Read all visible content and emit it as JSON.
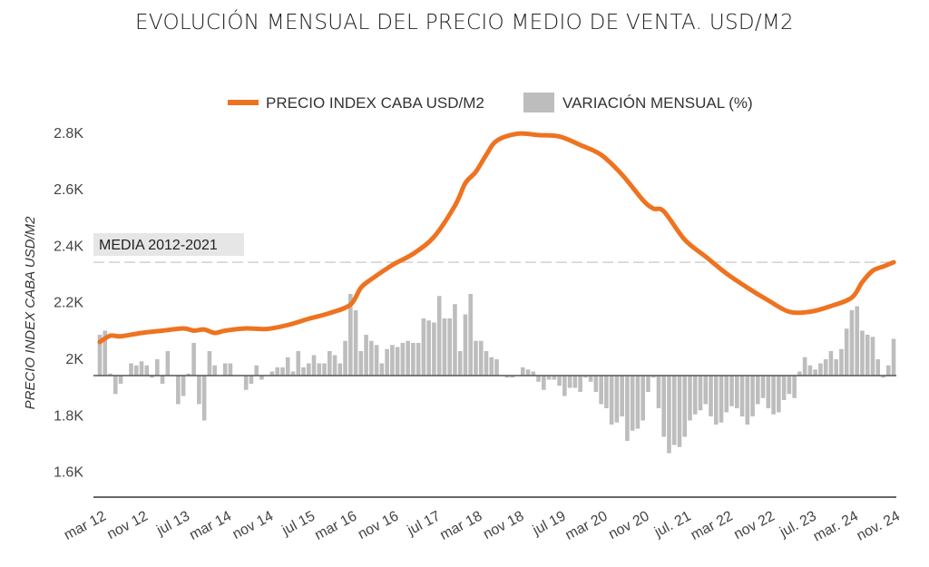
{
  "chart_data": {
    "type": "line+bar",
    "title": "EVOLUCIÓN MENSUAL DEL PRECIO MEDIO DE VENTA. USD/M2",
    "ylabel": "PRECIO INDEX CABA USD/M2",
    "xlabel": "",
    "ylim": [
      1520,
      2830
    ],
    "y_ticks": [
      "1.6K",
      "1.8K",
      "2K",
      "2.2K",
      "2.4K",
      "2.6K",
      "2.8K"
    ],
    "y_tick_values": [
      1600,
      1800,
      2000,
      2200,
      2400,
      2600,
      2800
    ],
    "x_ticks": [
      "mar 12",
      "nov 12",
      "jul 13",
      "mar 14",
      "nov 14",
      "jul 15",
      "mar 16",
      "nov 16",
      "jul 17",
      "mar 18",
      "nov 18",
      "jul 19",
      "mar 20",
      "nov 20",
      "jul. 21",
      "mar 22",
      "nov 22",
      "jul. 23",
      "mar. 24",
      "nov. 24"
    ],
    "x_tick_month_index": [
      0,
      8,
      16,
      24,
      32,
      40,
      48,
      56,
      64,
      72,
      80,
      88,
      96,
      104,
      112,
      120,
      128,
      136,
      144,
      152
    ],
    "legend": [
      "PRECIO INDEX CABA USD/M2",
      "VARIACIÓN MENSUAL (%)"
    ],
    "legend_position": "top-center",
    "reference_line": {
      "label": "MEDIA 2012-2021",
      "value": 2340
    },
    "series": [
      {
        "name": "PRECIO INDEX CABA USD/M2",
        "type": "line",
        "color": "#EE7320",
        "month_index": [
          0,
          2,
          4,
          8,
          12,
          16,
          18,
          20,
          22,
          24,
          28,
          32,
          36,
          40,
          44,
          48,
          50,
          52,
          56,
          60,
          64,
          68,
          70,
          72,
          74,
          76,
          80,
          84,
          88,
          92,
          96,
          100,
          104,
          106,
          108,
          112,
          116,
          120,
          124,
          128,
          132,
          136,
          140,
          144,
          146,
          148,
          150,
          152
        ],
        "values": [
          2058,
          2080,
          2078,
          2090,
          2098,
          2106,
          2098,
          2102,
          2090,
          2098,
          2106,
          2104,
          2118,
          2140,
          2160,
          2190,
          2250,
          2280,
          2330,
          2370,
          2430,
          2540,
          2620,
          2660,
          2720,
          2770,
          2795,
          2790,
          2785,
          2755,
          2720,
          2650,
          2560,
          2530,
          2520,
          2420,
          2360,
          2300,
          2250,
          2205,
          2165,
          2165,
          2185,
          2215,
          2270,
          2310,
          2325,
          2340
        ]
      },
      {
        "name": "VARIACIÓN MENSUAL (%)",
        "type": "bar",
        "color": "#BDBDBD",
        "values": [
          1.0,
          1.1,
          0.05,
          -0.45,
          -0.2,
          0,
          0.3,
          0.25,
          0.35,
          0.25,
          -0.05,
          0.4,
          -0.2,
          0.6,
          0,
          -0.7,
          -0.5,
          0.05,
          0.8,
          -0.7,
          -1.1,
          0.6,
          0.25,
          0,
          0.3,
          0.3,
          0,
          0,
          -0.35,
          -0.2,
          0.25,
          -0.1,
          0,
          0.1,
          0.2,
          0.2,
          0.45,
          0.1,
          0.6,
          0.2,
          0.3,
          0.5,
          0.3,
          0.3,
          0.6,
          0.5,
          0.3,
          0.85,
          2.0,
          1.6,
          0.6,
          1.0,
          0.85,
          0.75,
          0.3,
          0.65,
          0.75,
          0.7,
          0.8,
          0.85,
          0.8,
          0.8,
          1.4,
          1.35,
          1.3,
          1.95,
          1.4,
          1.4,
          1.75,
          0.6,
          1.5,
          2.0,
          0.85,
          0.85,
          0.6,
          0.45,
          0.4,
          0,
          -0.05,
          -0.05,
          0,
          0.2,
          0.15,
          0.1,
          -0.15,
          -0.35,
          -0.1,
          -0.1,
          -0.25,
          -0.5,
          -0.3,
          -0.3,
          -0.4,
          -0.05,
          -0.15,
          -0.4,
          -0.7,
          -0.8,
          -1.2,
          -1.15,
          -1.0,
          -1.6,
          -1.35,
          -1.3,
          -1.1,
          -0.4,
          -0.05,
          -0.8,
          -1.5,
          -1.9,
          -1.7,
          -1.75,
          -1.5,
          -1.1,
          -0.95,
          -0.85,
          -0.7,
          -1.0,
          -1.2,
          -1.15,
          -0.9,
          -0.75,
          -0.8,
          -1.0,
          -1.2,
          -1.0,
          -0.7,
          -0.55,
          -0.8,
          -0.95,
          -0.9,
          -0.6,
          -0.45,
          -0.55,
          0.1,
          0.45,
          0.25,
          0.15,
          0.3,
          0.4,
          0.6,
          0.4,
          0.65,
          1.15,
          1.6,
          1.7,
          1.1,
          1.0,
          0.95,
          0.4,
          -0.05,
          0.25,
          0.9
        ]
      }
    ],
    "grid": false
  }
}
